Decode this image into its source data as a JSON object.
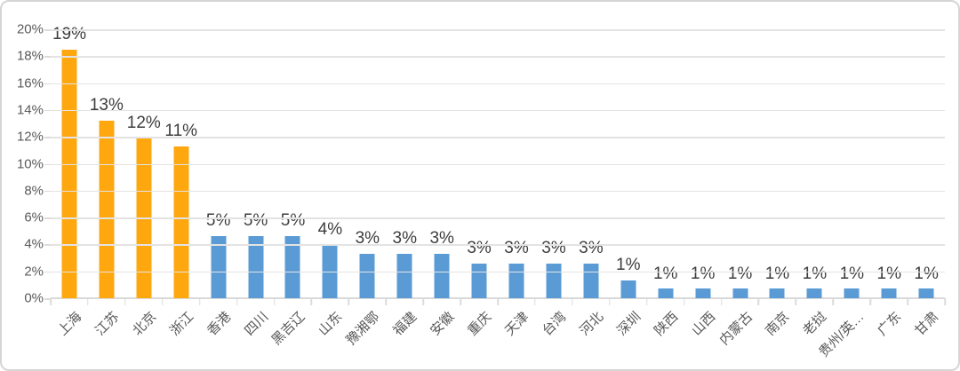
{
  "frame": {
    "background": "#FFFFFF",
    "border_color": "#D5D5D5"
  },
  "chart_data": {
    "type": "bar",
    "title": "",
    "legend": "none",
    "grid": true,
    "ylim": [
      0,
      20
    ],
    "y_ticks": [
      "0%",
      "2%",
      "4%",
      "6%",
      "8%",
      "10%",
      "12%",
      "14%",
      "16%",
      "18%",
      "20%"
    ],
    "categories": [
      "上海",
      "江苏",
      "北京",
      "浙江",
      "香港",
      "四川",
      "黑吉辽",
      "山东",
      "豫湘鄂",
      "福建",
      "安徽",
      "重庆",
      "天津",
      "台湾",
      "河北",
      "深圳",
      "陕西",
      "山西",
      "内蒙古",
      "南京",
      "老挝",
      "贵州/英…",
      "广东",
      "甘肃"
    ],
    "values": [
      18.5,
      13.2,
      11.9,
      11.3,
      4.6,
      4.6,
      4.6,
      4.0,
      3.3,
      3.3,
      3.3,
      2.6,
      2.6,
      2.6,
      2.6,
      1.3,
      0.7,
      0.7,
      0.7,
      0.7,
      0.7,
      0.7,
      0.7,
      0.7
    ],
    "data_labels": [
      "19%",
      "13%",
      "12%",
      "11%",
      "5%",
      "5%",
      "5%",
      "4%",
      "3%",
      "3%",
      "3%",
      "3%",
      "3%",
      "3%",
      "3%",
      "1%",
      "1%",
      "1%",
      "1%",
      "1%",
      "1%",
      "1%",
      "1%",
      "1%"
    ],
    "bar_colors": [
      "#FFA70F",
      "#FFA70F",
      "#FFA70F",
      "#FFA70F",
      "#5B9BD5",
      "#5B9BD5",
      "#5B9BD5",
      "#5B9BD5",
      "#5B9BD5",
      "#5B9BD5",
      "#5B9BD5",
      "#5B9BD5",
      "#5B9BD5",
      "#5B9BD5",
      "#5B9BD5",
      "#5B9BD5",
      "#5B9BD5",
      "#5B9BD5",
      "#5B9BD5",
      "#5B9BD5",
      "#5B9BD5",
      "#5B9BD5",
      "#5B9BD5",
      "#5B9BD5"
    ],
    "colors": {
      "highlight_orange": "#FFA70F",
      "primary_blue": "#5B9BD5",
      "gridline": "#E3E3E3",
      "axis_line": "#D9D9D9",
      "axis_text": "#595959",
      "data_label_text": "#3D3D3D"
    }
  }
}
